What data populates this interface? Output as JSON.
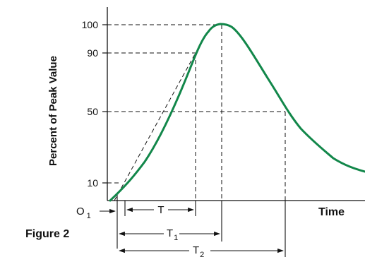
{
  "figure_label": "Figure 2",
  "y_axis": {
    "label": "Percent of Peak Value",
    "ticks": [
      "10",
      "50",
      "90",
      "100"
    ]
  },
  "x_axis": {
    "label": "Time",
    "origin_label": "O",
    "origin_subscript": "1"
  },
  "intervals": {
    "t": "T",
    "t1": "T",
    "t1_sub": "1",
    "t2": "T",
    "t2_sub": "2"
  },
  "colors": {
    "curve": "#12874a",
    "lines": "#111111"
  }
}
